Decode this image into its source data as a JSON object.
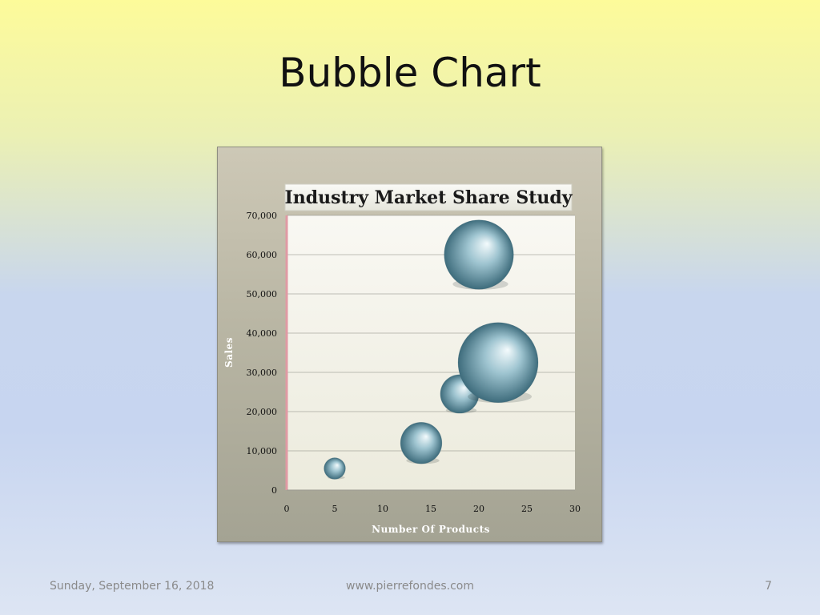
{
  "slide": {
    "title": "Bubble Chart",
    "footer_date": "Sunday, September 16, 2018",
    "footer_url": "www.pierrefondes.com",
    "page_number": "7"
  },
  "chart_data": {
    "type": "bubble",
    "title": "Industry Market Share Study",
    "xlabel": "Number Of Products",
    "ylabel": "Sales",
    "xlim": [
      0,
      30
    ],
    "ylim": [
      0,
      70000
    ],
    "x_ticks": [
      0,
      5,
      10,
      15,
      20,
      25,
      30
    ],
    "y_ticks": [
      0,
      10000,
      20000,
      30000,
      40000,
      50000,
      60000,
      70000
    ],
    "x_tick_labels": [
      "0",
      "5",
      "10",
      "15",
      "20",
      "25",
      "30"
    ],
    "y_tick_labels": [
      "0",
      "10,000",
      "20,000",
      "30,000",
      "40,000",
      "50,000",
      "60,000",
      "70,000"
    ],
    "grid": true,
    "points": [
      {
        "x": 5,
        "y": 5500,
        "size": 2
      },
      {
        "x": 14,
        "y": 12000,
        "size": 7.5
      },
      {
        "x": 18,
        "y": 24500,
        "size": 6.5
      },
      {
        "x": 20,
        "y": 60000,
        "size": 21
      },
      {
        "x": 22,
        "y": 32500,
        "size": 28
      }
    ],
    "colors": {
      "bubble_light": "#f4fbfd",
      "bubble_mid": "#9ec4d0",
      "bubble_dark": "#3e6c7c",
      "plot_bg": "#f7f5ee",
      "gridline": "#8a8a82",
      "axis_marker": "#e09aa4"
    }
  }
}
